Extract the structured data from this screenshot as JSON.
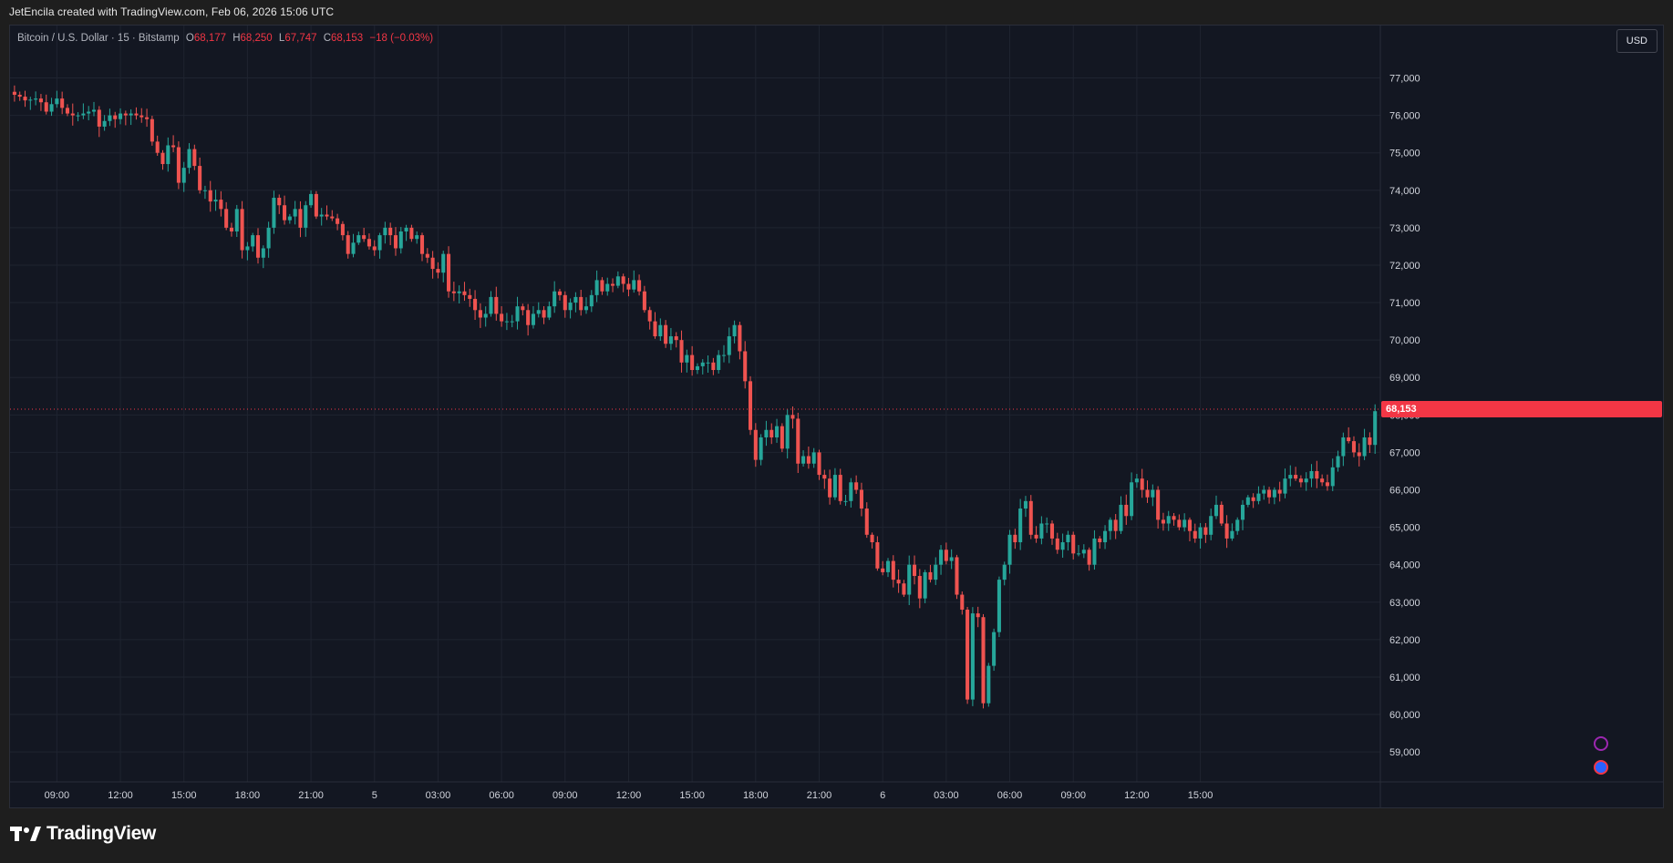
{
  "header": {
    "attribution": "JetEncila created with TradingView.com, Feb 06, 2026 15:06 UTC"
  },
  "legend": {
    "symbol": "Bitcoin / U.S. Dollar · 15 · Bitstamp",
    "o_label": "O",
    "o_value": "68,177",
    "h_label": "H",
    "h_value": "68,250",
    "l_label": "L",
    "l_value": "67,747",
    "c_label": "C",
    "c_value": "68,153",
    "change": "−18 (−0.03%)"
  },
  "currency_button": "USD",
  "last_price_label": "68,153",
  "brand": {
    "name": "TradingView"
  },
  "colors": {
    "up": "#26a69a",
    "down": "#ef5350",
    "background": "#131722",
    "grid": "#1f2430",
    "last_price_line": "#f23645"
  },
  "chart_data": {
    "type": "candlestick",
    "grid": true,
    "ylim": [
      58200,
      78400
    ],
    "y_ticks": [
      59000,
      60000,
      61000,
      62000,
      63000,
      64000,
      65000,
      66000,
      67000,
      68000,
      69000,
      70000,
      71000,
      72000,
      73000,
      74000,
      75000,
      76000,
      77000
    ],
    "y_tick_labels": [
      "59,000",
      "60,000",
      "61,000",
      "62,000",
      "63,000",
      "64,000",
      "65,000",
      "66,000",
      "67,000",
      "68,000",
      "69,000",
      "70,000",
      "71,000",
      "72,000",
      "73,000",
      "74,000",
      "75,000",
      "76,000",
      "77,000"
    ],
    "x_ticks": [
      {
        "index": 8,
        "label": "09:00"
      },
      {
        "index": 20,
        "label": "12:00"
      },
      {
        "index": 32,
        "label": "15:00"
      },
      {
        "index": 44,
        "label": "18:00"
      },
      {
        "index": 56,
        "label": "21:00"
      },
      {
        "index": 68,
        "label": "5"
      },
      {
        "index": 80,
        "label": "03:00"
      },
      {
        "index": 92,
        "label": "06:00"
      },
      {
        "index": 104,
        "label": "09:00"
      },
      {
        "index": 116,
        "label": "12:00"
      },
      {
        "index": 128,
        "label": "15:00"
      },
      {
        "index": 140,
        "label": "18:00"
      },
      {
        "index": 152,
        "label": "21:00"
      },
      {
        "index": 164,
        "label": "6"
      },
      {
        "index": 176,
        "label": "03:00"
      },
      {
        "index": 188,
        "label": "06:00"
      },
      {
        "index": 200,
        "label": "09:00"
      },
      {
        "index": 212,
        "label": "12:00"
      },
      {
        "index": 224,
        "label": "15:00"
      }
    ],
    "last_price": 68153,
    "closes": [
      76550,
      76500,
      76400,
      76420,
      76450,
      76350,
      76100,
      76300,
      76450,
      76200,
      76050,
      76000,
      76000,
      76050,
      76100,
      76150,
      75700,
      75850,
      76000,
      75900,
      76050,
      76000,
      76050,
      76000,
      75950,
      75900,
      75300,
      75000,
      74700,
      75200,
      75150,
      74200,
      74600,
      75100,
      74650,
      74000,
      74000,
      73700,
      73750,
      73500,
      73000,
      72900,
      73500,
      72400,
      72500,
      72800,
      72200,
      72450,
      73000,
      73800,
      73600,
      73200,
      73300,
      73500,
      73000,
      73600,
      73900,
      73300,
      73350,
      73300,
      73250,
      73100,
      72800,
      72300,
      72600,
      72800,
      72700,
      72500,
      72400,
      72800,
      73000,
      72800,
      72450,
      72900,
      73000,
      72700,
      72800,
      72300,
      72200,
      71900,
      71800,
      72300,
      71300,
      71250,
      71300,
      71200,
      71100,
      70800,
      70600,
      70700,
      71150,
      70700,
      70500,
      70500,
      70500,
      70900,
      70800,
      70400,
      70700,
      70800,
      70600,
      70900,
      71300,
      71200,
      70800,
      71000,
      71150,
      70800,
      70900,
      71200,
      71600,
      71300,
      71500,
      71450,
      71700,
      71500,
      71350,
      71600,
      71300,
      70800,
      70500,
      70100,
      70400,
      69900,
      70100,
      70000,
      69400,
      69600,
      69200,
      69300,
      69400,
      69400,
      69200,
      69600,
      69600,
      70100,
      70400,
      69700,
      68900,
      67600,
      66800,
      67400,
      67600,
      67400,
      67700,
      67100,
      68000,
      67900,
      66700,
      66900,
      66700,
      67000,
      66400,
      66300,
      65800,
      66400,
      65700,
      65700,
      66200,
      66000,
      65500,
      64800,
      64600,
      63900,
      63800,
      64100,
      63600,
      63500,
      63200,
      64000,
      63700,
      63100,
      63800,
      63600,
      64000,
      64400,
      64100,
      64200,
      63200,
      62800,
      60400,
      62700,
      62600,
      60300,
      61300,
      62200,
      63600,
      64000,
      64800,
      64600,
      65500,
      65700,
      64800,
      64700,
      65100,
      65100,
      64700,
      64400,
      64600,
      64800,
      64300,
      64300,
      64400,
      64000,
      64700,
      64600,
      64900,
      65200,
      64900,
      65600,
      65300,
      66200,
      66300,
      66000,
      65800,
      66000,
      65200,
      65100,
      65300,
      65200,
      65000,
      65200,
      64900,
      64700,
      65000,
      64800,
      65300,
      65600,
      65100,
      64700,
      64900,
      65200,
      65600,
      65800,
      65700,
      65900,
      66000,
      65800,
      66000,
      65900,
      66300,
      66400,
      66300,
      66200,
      66300,
      66500,
      66300,
      66200,
      66100,
      66600,
      66900,
      67400,
      67300,
      67000,
      66900,
      67400,
      67200,
      68100
    ]
  }
}
